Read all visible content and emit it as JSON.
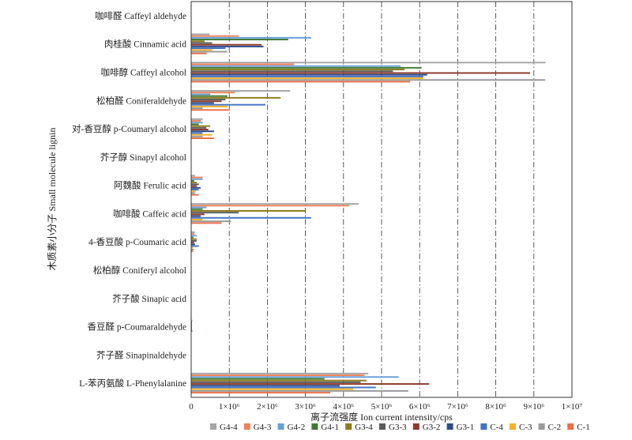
{
  "chart_data": {
    "type": "bar",
    "orientation": "horizontal",
    "xlabel": "离子流强度 Ion current intensity/cps",
    "ylabel": "木质素小分子 Small molecule lignin",
    "xlim": [
      0,
      10000000
    ],
    "x_ticks": [
      {
        "value": 0,
        "label": "0"
      },
      {
        "value": 1000000,
        "label": "1×10⁶"
      },
      {
        "value": 2000000,
        "label": "2×10⁶"
      },
      {
        "value": 3000000,
        "label": "3×10⁶"
      },
      {
        "value": 4000000,
        "label": "4×10⁶"
      },
      {
        "value": 5000000,
        "label": "5×10⁶"
      },
      {
        "value": 6000000,
        "label": "6×10⁶"
      },
      {
        "value": 7000000,
        "label": "7×10⁶"
      },
      {
        "value": 8000000,
        "label": "8×10⁶"
      },
      {
        "value": 9000000,
        "label": "9×10⁶"
      },
      {
        "value": 10000000,
        "label": "1×10⁷"
      }
    ],
    "grid": "vertical dash-dot",
    "legend_position": "bottom",
    "categories": [
      "咖啡醛 Caffeyl aldehyde",
      "肉桂酸 Cinnamic acid",
      "咖啡醇 Caffeyl alcohol",
      "松柏醛 Coniferaldehyde",
      "对-香豆醇 p-Coumaryl alcohol",
      "芥子醇 Sinapyl alcohol",
      "阿魏酸 Ferulic acid",
      "咖啡酸 Caffeic acid",
      "4-香豆酸 p-Coumaric acid",
      "松柏醇 Coniferyl alcohol",
      "芥子酸 Sinapic acid",
      "香豆醛 p-Coumaraldehyde",
      "芥子醛 Sinapinaldehyde",
      "L-苯丙氨酸 L-Phenylalanine"
    ],
    "series": [
      {
        "name": "G4-4",
        "color": "#a5a5a5",
        "values": [
          0,
          480000,
          9300000,
          2600000,
          300000,
          0,
          100000,
          4400000,
          100000,
          0,
          0,
          0,
          0,
          4650000
        ]
      },
      {
        "name": "G4-3",
        "color": "#f0825a",
        "values": [
          0,
          1250000,
          2700000,
          1150000,
          250000,
          0,
          300000,
          4150000,
          80000,
          0,
          0,
          0,
          0,
          4550000
        ]
      },
      {
        "name": "G4-2",
        "color": "#6a9fd8",
        "values": [
          0,
          3150000,
          5500000,
          500000,
          300000,
          0,
          300000,
          400000,
          150000,
          0,
          0,
          30000,
          0,
          5450000
        ]
      },
      {
        "name": "G4-1",
        "color": "#3f7a34",
        "values": [
          0,
          2550000,
          6050000,
          950000,
          200000,
          0,
          80000,
          300000,
          60000,
          0,
          0,
          20000,
          0,
          3500000
        ]
      },
      {
        "name": "G3-4",
        "color": "#8c7a1c",
        "values": [
          0,
          350000,
          5600000,
          2350000,
          500000,
          0,
          150000,
          3000000,
          150000,
          0,
          0,
          20000,
          0,
          4600000
        ]
      },
      {
        "name": "G3-3",
        "color": "#5a5a5a",
        "values": [
          0,
          550000,
          5300000,
          900000,
          400000,
          0,
          200000,
          1250000,
          140000,
          0,
          0,
          20000,
          0,
          4450000
        ]
      },
      {
        "name": "G3-2",
        "color": "#8b3a2b",
        "values": [
          0,
          1850000,
          8900000,
          800000,
          450000,
          0,
          150000,
          350000,
          80000,
          0,
          0,
          20000,
          0,
          6250000
        ]
      },
      {
        "name": "G3-1",
        "color": "#2e4a8a",
        "values": [
          0,
          1900000,
          6200000,
          600000,
          600000,
          0,
          250000,
          250000,
          100000,
          0,
          0,
          20000,
          0,
          3900000
        ]
      },
      {
        "name": "C-4",
        "color": "#4472c4",
        "values": [
          0,
          900000,
          6100000,
          1950000,
          300000,
          0,
          200000,
          3150000,
          200000,
          0,
          0,
          30000,
          0,
          4850000
        ]
      },
      {
        "name": "C-3",
        "color": "#f2b229",
        "values": [
          0,
          550000,
          6100000,
          950000,
          550000,
          0,
          130000,
          300000,
          50000,
          0,
          0,
          10000,
          0,
          4250000
        ]
      },
      {
        "name": "C-2",
        "color": "#999999",
        "values": [
          0,
          950000,
          9300000,
          300000,
          300000,
          0,
          100000,
          1050000,
          70000,
          0,
          0,
          10000,
          0,
          5700000
        ]
      },
      {
        "name": "C-1",
        "color": "#e8704a",
        "values": [
          0,
          400000,
          5750000,
          1000000,
          600000,
          0,
          200000,
          800000,
          50000,
          0,
          0,
          10000,
          0,
          3650000
        ]
      }
    ]
  }
}
